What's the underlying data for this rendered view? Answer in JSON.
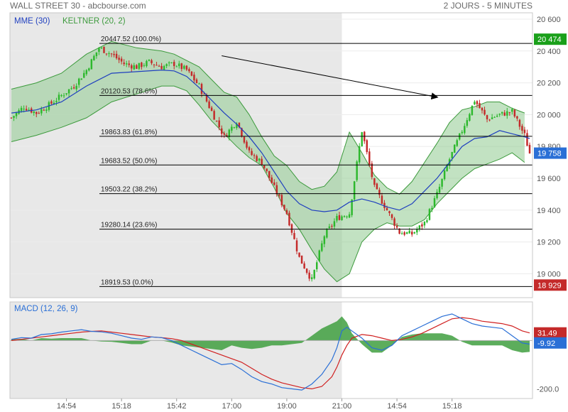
{
  "header": {
    "title": "WALL STREET 30 - abcbourse.com",
    "period": "2 JOURS - 5 MINUTES"
  },
  "colors": {
    "up": "#2db82d",
    "down": "#c42a2a",
    "ema": "#1f3fbf",
    "keltner_fill": "#8fca8f",
    "keltner_line": "#3c9a3c",
    "shade": "#e8e8e8",
    "macd": "#2a6fd6",
    "signal": "#d02020",
    "hist": "#3f9f3f",
    "badge_green": "#1aa01a",
    "badge_red": "#c42a2a",
    "badge_blue": "#2a6fd6"
  },
  "chart_data": [
    {
      "type": "line",
      "name": "price",
      "legend": [
        "MME (30)",
        "KELTNER (20, 2)"
      ],
      "y_ticks": [
        "20 600",
        "20 400",
        "20 200",
        "20 000",
        "19 800",
        "19 600",
        "19 400",
        "19 200",
        "19 000"
      ],
      "y_tick_values": [
        20600,
        20400,
        20200,
        20000,
        19800,
        19600,
        19400,
        19200,
        19000
      ],
      "ylim": [
        18850,
        20640
      ],
      "x_ticks": [
        "14:54",
        "15:18",
        "15:42",
        "17:00",
        "19:00",
        "21:00",
        "14:54",
        "15:18"
      ],
      "x_tick_index": [
        22,
        44,
        66,
        88,
        110,
        132,
        154,
        176
      ],
      "shaded_session": [
        0,
        132
      ],
      "fib_levels": [
        {
          "value": 20447.52,
          "label": "20447.52",
          "pct": "(100.0%)"
        },
        {
          "value": 20120.53,
          "label": "20120.53",
          "pct": "(78.6%)"
        },
        {
          "value": 19863.83,
          "label": "19863.83",
          "pct": "(61.8%)"
        },
        {
          "value": 19683.52,
          "label": "19683.52",
          "pct": "(50.0%)"
        },
        {
          "value": 19503.22,
          "label": "19503.22",
          "pct": "(38.2%)"
        },
        {
          "value": 19280.14,
          "label": "19280.14",
          "pct": "(23.6%)"
        },
        {
          "value": 18919.53,
          "label": "18919.53",
          "pct": "(0.0%)"
        }
      ],
      "close_path": [
        [
          0,
          19980
        ],
        [
          5,
          20050
        ],
        [
          10,
          20010
        ],
        [
          15,
          20060
        ],
        [
          20,
          20120
        ],
        [
          25,
          20180
        ],
        [
          30,
          20280
        ],
        [
          35,
          20420
        ],
        [
          40,
          20380
        ],
        [
          45,
          20320
        ],
        [
          50,
          20300
        ],
        [
          55,
          20330
        ],
        [
          60,
          20300
        ],
        [
          65,
          20320
        ],
        [
          70,
          20280
        ],
        [
          75,
          20180
        ],
        [
          80,
          20020
        ],
        [
          85,
          19860
        ],
        [
          90,
          19960
        ],
        [
          95,
          19760
        ],
        [
          100,
          19700
        ],
        [
          105,
          19540
        ],
        [
          110,
          19380
        ],
        [
          115,
          19100
        ],
        [
          120,
          18960
        ],
        [
          125,
          19240
        ],
        [
          130,
          19350
        ],
        [
          135,
          19380
        ],
        [
          140,
          19900
        ],
        [
          145,
          19540
        ],
        [
          150,
          19400
        ],
        [
          155,
          19260
        ],
        [
          160,
          19250
        ],
        [
          165,
          19320
        ],
        [
          170,
          19500
        ],
        [
          175,
          19720
        ],
        [
          180,
          19900
        ],
        [
          185,
          20090
        ],
        [
          190,
          19970
        ],
        [
          195,
          20000
        ],
        [
          200,
          20020
        ],
        [
          205,
          19870
        ],
        [
          207,
          19758
        ]
      ],
      "ema_path": [
        [
          0,
          20010
        ],
        [
          10,
          20030
        ],
        [
          20,
          20080
        ],
        [
          30,
          20180
        ],
        [
          40,
          20260
        ],
        [
          50,
          20270
        ],
        [
          60,
          20280
        ],
        [
          65,
          20275
        ],
        [
          70,
          20240
        ],
        [
          75,
          20170
        ],
        [
          80,
          20090
        ],
        [
          85,
          20010
        ],
        [
          90,
          19940
        ],
        [
          95,
          19860
        ],
        [
          100,
          19760
        ],
        [
          105,
          19640
        ],
        [
          110,
          19520
        ],
        [
          115,
          19440
        ],
        [
          120,
          19400
        ],
        [
          125,
          19390
        ],
        [
          130,
          19400
        ],
        [
          135,
          19450
        ],
        [
          140,
          19470
        ],
        [
          145,
          19450
        ],
        [
          150,
          19420
        ],
        [
          155,
          19400
        ],
        [
          160,
          19440
        ],
        [
          165,
          19520
        ],
        [
          170,
          19600
        ],
        [
          175,
          19700
        ],
        [
          180,
          19800
        ],
        [
          185,
          19850
        ],
        [
          190,
          19860
        ],
        [
          195,
          19900
        ],
        [
          200,
          19880
        ],
        [
          205,
          19860
        ],
        [
          207,
          19850
        ]
      ],
      "keltner_upper": [
        [
          0,
          20160
        ],
        [
          10,
          20200
        ],
        [
          20,
          20260
        ],
        [
          30,
          20380
        ],
        [
          40,
          20460
        ],
        [
          50,
          20420
        ],
        [
          60,
          20400
        ],
        [
          65,
          20380
        ],
        [
          70,
          20340
        ],
        [
          75,
          20300
        ],
        [
          80,
          20220
        ],
        [
          85,
          20140
        ],
        [
          90,
          20110
        ],
        [
          95,
          20000
        ],
        [
          100,
          19860
        ],
        [
          105,
          19740
        ],
        [
          110,
          19680
        ],
        [
          115,
          19580
        ],
        [
          120,
          19530
        ],
        [
          125,
          19550
        ],
        [
          130,
          19640
        ],
        [
          135,
          19890
        ],
        [
          140,
          19760
        ],
        [
          145,
          19620
        ],
        [
          150,
          19540
        ],
        [
          155,
          19500
        ],
        [
          160,
          19580
        ],
        [
          165,
          19700
        ],
        [
          170,
          19820
        ],
        [
          175,
          19950
        ],
        [
          180,
          20030
        ],
        [
          185,
          20050
        ],
        [
          190,
          20080
        ],
        [
          195,
          20080
        ],
        [
          200,
          20040
        ],
        [
          205,
          20010
        ]
      ],
      "keltner_lower": [
        [
          0,
          19830
        ],
        [
          10,
          19870
        ],
        [
          20,
          19920
        ],
        [
          30,
          19980
        ],
        [
          40,
          20080
        ],
        [
          50,
          20130
        ],
        [
          60,
          20180
        ],
        [
          65,
          20180
        ],
        [
          70,
          20150
        ],
        [
          75,
          20060
        ],
        [
          80,
          19960
        ],
        [
          85,
          19880
        ],
        [
          90,
          19800
        ],
        [
          95,
          19730
        ],
        [
          100,
          19680
        ],
        [
          105,
          19540
        ],
        [
          110,
          19380
        ],
        [
          115,
          19280
        ],
        [
          120,
          19150
        ],
        [
          125,
          19030
        ],
        [
          130,
          18950
        ],
        [
          135,
          19000
        ],
        [
          140,
          19200
        ],
        [
          145,
          19280
        ],
        [
          150,
          19320
        ],
        [
          155,
          19300
        ],
        [
          160,
          19300
        ],
        [
          165,
          19340
        ],
        [
          170,
          19440
        ],
        [
          175,
          19520
        ],
        [
          180,
          19600
        ],
        [
          185,
          19660
        ],
        [
          190,
          19690
        ],
        [
          195,
          19720
        ],
        [
          200,
          19760
        ],
        [
          205,
          19700
        ]
      ],
      "arrow": {
        "from": [
          84,
          20370
        ],
        "to": [
          170,
          20110
        ]
      },
      "badges": [
        {
          "value": 20474,
          "text": "20 474",
          "color": "green"
        },
        {
          "value": 19758,
          "text": "19 758",
          "color": "blue"
        },
        {
          "value": 18929,
          "text": "18 929",
          "color": "red"
        }
      ]
    },
    {
      "type": "line",
      "name": "MACD (12, 26, 9)",
      "legend": "MACD (12, 26, 9)",
      "y_ticks": [
        "-200.0"
      ],
      "y_tick_values": [
        -200
      ],
      "ylim": [
        -240,
        160
      ],
      "macd": [
        [
          0,
          5
        ],
        [
          4,
          12
        ],
        [
          8,
          10
        ],
        [
          12,
          25
        ],
        [
          16,
          28
        ],
        [
          20,
          35
        ],
        [
          24,
          40
        ],
        [
          28,
          45
        ],
        [
          32,
          38
        ],
        [
          36,
          36
        ],
        [
          40,
          30
        ],
        [
          44,
          20
        ],
        [
          48,
          10
        ],
        [
          52,
          5
        ],
        [
          56,
          15
        ],
        [
          60,
          12
        ],
        [
          64,
          0
        ],
        [
          68,
          -20
        ],
        [
          72,
          -40
        ],
        [
          76,
          -60
        ],
        [
          80,
          -80
        ],
        [
          84,
          -100
        ],
        [
          88,
          -95
        ],
        [
          92,
          -120
        ],
        [
          96,
          -150
        ],
        [
          100,
          -170
        ],
        [
          104,
          -180
        ],
        [
          108,
          -195
        ],
        [
          112,
          -200
        ],
        [
          116,
          -205
        ],
        [
          120,
          -180
        ],
        [
          124,
          -140
        ],
        [
          128,
          -80
        ],
        [
          130,
          -30
        ],
        [
          132,
          40
        ],
        [
          134,
          55
        ],
        [
          136,
          40
        ],
        [
          140,
          10
        ],
        [
          144,
          -30
        ],
        [
          148,
          -40
        ],
        [
          152,
          -20
        ],
        [
          156,
          20
        ],
        [
          160,
          40
        ],
        [
          164,
          60
        ],
        [
          168,
          80
        ],
        [
          172,
          100
        ],
        [
          176,
          110
        ],
        [
          180,
          90
        ],
        [
          184,
          70
        ],
        [
          188,
          60
        ],
        [
          192,
          55
        ],
        [
          196,
          50
        ],
        [
          200,
          20
        ],
        [
          204,
          -10
        ],
        [
          207,
          -15
        ]
      ],
      "signal": [
        [
          0,
          0
        ],
        [
          4,
          5
        ],
        [
          8,
          10
        ],
        [
          12,
          15
        ],
        [
          16,
          20
        ],
        [
          20,
          25
        ],
        [
          24,
          30
        ],
        [
          28,
          35
        ],
        [
          32,
          38
        ],
        [
          36,
          40
        ],
        [
          40,
          35
        ],
        [
          44,
          30
        ],
        [
          48,
          25
        ],
        [
          52,
          20
        ],
        [
          56,
          15
        ],
        [
          60,
          12
        ],
        [
          64,
          8
        ],
        [
          68,
          0
        ],
        [
          72,
          -15
        ],
        [
          76,
          -30
        ],
        [
          80,
          -45
        ],
        [
          84,
          -60
        ],
        [
          88,
          -75
        ],
        [
          92,
          -90
        ],
        [
          96,
          -115
        ],
        [
          100,
          -140
        ],
        [
          104,
          -160
        ],
        [
          108,
          -175
        ],
        [
          112,
          -185
        ],
        [
          116,
          -195
        ],
        [
          120,
          -200
        ],
        [
          124,
          -190
        ],
        [
          128,
          -150
        ],
        [
          130,
          -110
        ],
        [
          132,
          -60
        ],
        [
          134,
          -20
        ],
        [
          136,
          10
        ],
        [
          140,
          25
        ],
        [
          144,
          20
        ],
        [
          148,
          10
        ],
        [
          152,
          0
        ],
        [
          156,
          5
        ],
        [
          160,
          15
        ],
        [
          164,
          30
        ],
        [
          168,
          50
        ],
        [
          172,
          70
        ],
        [
          176,
          90
        ],
        [
          180,
          95
        ],
        [
          184,
          90
        ],
        [
          188,
          80
        ],
        [
          192,
          75
        ],
        [
          196,
          70
        ],
        [
          200,
          60
        ],
        [
          204,
          40
        ],
        [
          207,
          31.49
        ]
      ],
      "histogram": [
        [
          0,
          5
        ],
        [
          4,
          7
        ],
        [
          8,
          0
        ],
        [
          12,
          10
        ],
        [
          16,
          8
        ],
        [
          20,
          10
        ],
        [
          24,
          10
        ],
        [
          28,
          10
        ],
        [
          32,
          0
        ],
        [
          36,
          -4
        ],
        [
          40,
          -5
        ],
        [
          44,
          -10
        ],
        [
          48,
          -15
        ],
        [
          52,
          -15
        ],
        [
          56,
          0
        ],
        [
          60,
          0
        ],
        [
          64,
          -8
        ],
        [
          68,
          -20
        ],
        [
          72,
          -25
        ],
        [
          76,
          -30
        ],
        [
          80,
          -35
        ],
        [
          84,
          -40
        ],
        [
          88,
          -20
        ],
        [
          92,
          -30
        ],
        [
          96,
          -35
        ],
        [
          100,
          -30
        ],
        [
          104,
          -20
        ],
        [
          108,
          -20
        ],
        [
          112,
          -15
        ],
        [
          116,
          -10
        ],
        [
          120,
          20
        ],
        [
          124,
          50
        ],
        [
          128,
          70
        ],
        [
          130,
          80
        ],
        [
          132,
          100
        ],
        [
          134,
          75
        ],
        [
          136,
          30
        ],
        [
          140,
          -15
        ],
        [
          144,
          -50
        ],
        [
          148,
          -50
        ],
        [
          152,
          -20
        ],
        [
          156,
          15
        ],
        [
          160,
          25
        ],
        [
          164,
          30
        ],
        [
          168,
          30
        ],
        [
          172,
          30
        ],
        [
          176,
          20
        ],
        [
          180,
          -5
        ],
        [
          184,
          -20
        ],
        [
          188,
          -20
        ],
        [
          192,
          -20
        ],
        [
          196,
          -20
        ],
        [
          200,
          -40
        ],
        [
          204,
          -50
        ],
        [
          207,
          -47
        ]
      ],
      "badges": [
        {
          "value": 31.49,
          "text": "31.49",
          "color": "red"
        },
        {
          "value": -9.92,
          "text": "-9.92",
          "color": "blue"
        }
      ]
    }
  ]
}
